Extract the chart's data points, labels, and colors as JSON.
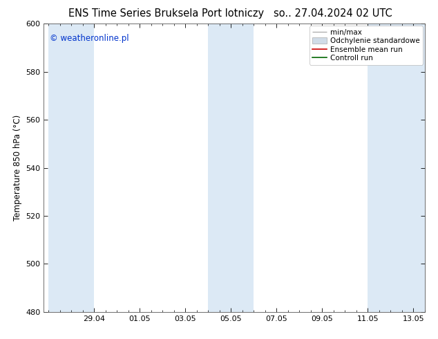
{
  "title_left": "ENS Time Series Bruksela Port lotniczy",
  "title_right": "so.. 27.04.2024 02 UTC",
  "ylabel": "Temperature 850 hPa (°C)",
  "ylim": [
    480,
    600
  ],
  "yticks": [
    480,
    500,
    520,
    540,
    560,
    580,
    600
  ],
  "copyright_text": "© weatheronline.pl",
  "copyright_color": "#0033cc",
  "background_color": "#ffffff",
  "plot_bg_color": "#ffffff",
  "shade_color": "#dce9f5",
  "legend_entries": [
    {
      "label": "min/max",
      "color": "#b0b0b0",
      "type": "minmax"
    },
    {
      "label": "Odchylenie standardowe",
      "color": "#d0dce8",
      "type": "fill"
    },
    {
      "label": "Ensemble mean run",
      "color": "#cc0000",
      "type": "line"
    },
    {
      "label": "Controll run",
      "color": "#006600",
      "type": "line"
    }
  ],
  "xtick_labels": [
    "29.04",
    "01.05",
    "03.05",
    "05.05",
    "07.05",
    "09.05",
    "11.05",
    "13.05"
  ],
  "title_fontsize": 10.5,
  "tick_fontsize": 8,
  "ylabel_fontsize": 8.5,
  "legend_fontsize": 7.5
}
